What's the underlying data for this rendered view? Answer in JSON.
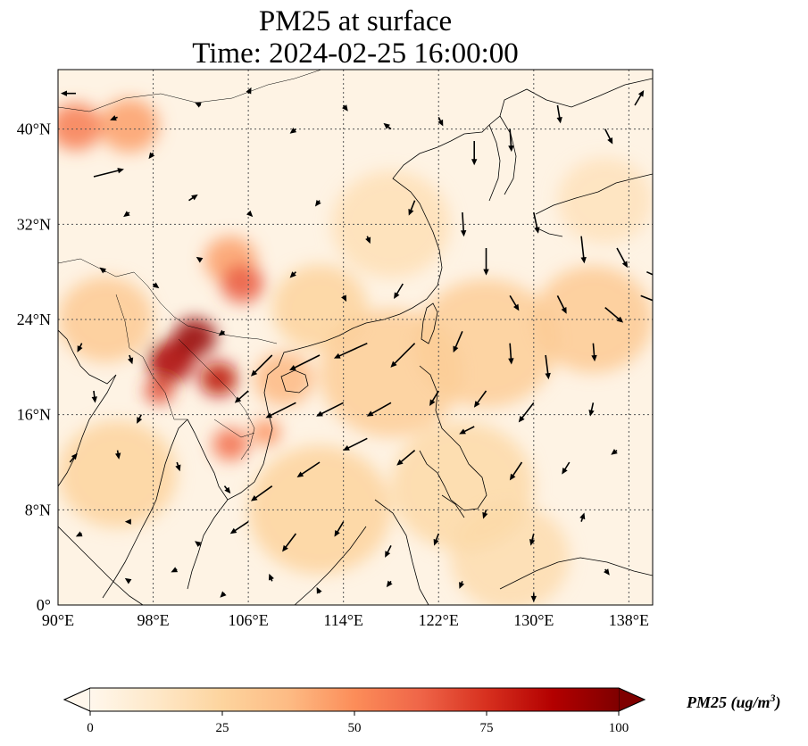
{
  "title": {
    "line1": "PM25 at surface",
    "line2": "Time: 2024-02-25 16:00:00"
  },
  "map": {
    "extent": {
      "lon": [
        90,
        140
      ],
      "lat": [
        0,
        45
      ]
    },
    "grid": true,
    "lon_ticks": [
      {
        "value": 90,
        "label": "90°E"
      },
      {
        "value": 98,
        "label": "98°E"
      },
      {
        "value": 106,
        "label": "106°E"
      },
      {
        "value": 114,
        "label": "114°E"
      },
      {
        "value": 122,
        "label": "122°E"
      },
      {
        "value": 130,
        "label": "130°E"
      },
      {
        "value": 138,
        "label": "138°E"
      }
    ],
    "lat_ticks": [
      {
        "value": 0,
        "label": "0°"
      },
      {
        "value": 8,
        "label": "8°N"
      },
      {
        "value": 16,
        "label": "16°N"
      },
      {
        "value": 24,
        "label": "24°N"
      },
      {
        "value": 32,
        "label": "32°N"
      },
      {
        "value": 40,
        "label": "40°N"
      }
    ],
    "colormap": "OrRd",
    "background_color": "#fef3e4",
    "pm25_hotspots": [
      {
        "lon": 91.5,
        "lat": 40.2,
        "r": 2.2,
        "value": 55
      },
      {
        "lon": 96,
        "lat": 40.3,
        "r": 2.5,
        "value": 45
      },
      {
        "lon": 105.5,
        "lat": 27,
        "r": 1.8,
        "value": 65
      },
      {
        "lon": 104.5,
        "lat": 29,
        "r": 2.2,
        "value": 45
      },
      {
        "lon": 101.5,
        "lat": 22.5,
        "r": 1.8,
        "value": 95
      },
      {
        "lon": 99.5,
        "lat": 20.5,
        "r": 2,
        "value": 90
      },
      {
        "lon": 103.5,
        "lat": 19,
        "r": 1.6,
        "value": 85
      },
      {
        "lon": 98.5,
        "lat": 18,
        "r": 1.2,
        "value": 70
      },
      {
        "lon": 104.5,
        "lat": 13.5,
        "r": 1.5,
        "value": 60
      },
      {
        "lon": 107.5,
        "lat": 14.5,
        "r": 1.2,
        "value": 50
      },
      {
        "lon": 109,
        "lat": 19,
        "r": 2.5,
        "value": 38
      },
      {
        "lon": 94,
        "lat": 24,
        "r": 4,
        "value": 30
      },
      {
        "lon": 112,
        "lat": 25,
        "r": 4,
        "value": 25
      },
      {
        "lon": 118,
        "lat": 19.5,
        "r": 6,
        "value": 28
      },
      {
        "lon": 126,
        "lat": 22,
        "r": 6,
        "value": 28
      },
      {
        "lon": 135,
        "lat": 24,
        "r": 5,
        "value": 30
      },
      {
        "lon": 124,
        "lat": 10,
        "r": 6,
        "value": 22
      },
      {
        "lon": 112,
        "lat": 8,
        "r": 6,
        "value": 25
      },
      {
        "lon": 95,
        "lat": 11,
        "r": 5,
        "value": 25
      },
      {
        "lon": 128,
        "lat": 4,
        "r": 5,
        "value": 20
      },
      {
        "lon": 136,
        "lat": 34,
        "r": 4,
        "value": 16
      },
      {
        "lon": 118,
        "lat": 32,
        "r": 5,
        "value": 18
      }
    ],
    "wind_vectors": [
      {
        "lon": 91.5,
        "lat": 43,
        "u": -1,
        "v": 0
      },
      {
        "lon": 95,
        "lat": 41,
        "u": -0.5,
        "v": -0.2
      },
      {
        "lon": 93,
        "lat": 36,
        "u": 2,
        "v": 0.5
      },
      {
        "lon": 98,
        "lat": 38,
        "u": -0.3,
        "v": -0.4
      },
      {
        "lon": 102,
        "lat": 42,
        "u": -0.4,
        "v": 0.2
      },
      {
        "lon": 106,
        "lat": 43,
        "u": 0.2,
        "v": 0.4
      },
      {
        "lon": 110,
        "lat": 40,
        "u": -0.4,
        "v": -0.3
      },
      {
        "lon": 114,
        "lat": 42,
        "u": 0.3,
        "v": -0.4
      },
      {
        "lon": 118,
        "lat": 40,
        "u": -0.5,
        "v": 0.4
      },
      {
        "lon": 122,
        "lat": 41,
        "u": 0.3,
        "v": -0.6
      },
      {
        "lon": 125,
        "lat": 39,
        "u": 0,
        "v": -1.6
      },
      {
        "lon": 128,
        "lat": 40,
        "u": 0.1,
        "v": -1.5
      },
      {
        "lon": 132,
        "lat": 42,
        "u": 0.2,
        "v": -1.2
      },
      {
        "lon": 136,
        "lat": 40,
        "u": 0.5,
        "v": -1
      },
      {
        "lon": 138.5,
        "lat": 42,
        "u": 0.6,
        "v": 1
      },
      {
        "lon": 96,
        "lat": 33,
        "u": -0.4,
        "v": -0.3
      },
      {
        "lon": 101,
        "lat": 34,
        "u": 0.6,
        "v": 0.4
      },
      {
        "lon": 106,
        "lat": 33,
        "u": 0.3,
        "v": -0.3
      },
      {
        "lon": 112,
        "lat": 34,
        "u": -0.3,
        "v": -0.4
      },
      {
        "lon": 116,
        "lat": 31,
        "u": 0.2,
        "v": -0.5
      },
      {
        "lon": 120,
        "lat": 34,
        "u": -0.4,
        "v": -1
      },
      {
        "lon": 124,
        "lat": 33,
        "u": 0.1,
        "v": -1.6
      },
      {
        "lon": 126,
        "lat": 30,
        "u": 0,
        "v": -1.8
      },
      {
        "lon": 130,
        "lat": 33,
        "u": 0.3,
        "v": -1.4
      },
      {
        "lon": 134,
        "lat": 31,
        "u": 0.2,
        "v": -1.8
      },
      {
        "lon": 137,
        "lat": 30,
        "u": 0.7,
        "v": -1.3
      },
      {
        "lon": 139.5,
        "lat": 28,
        "u": 1.5,
        "v": -0.7
      },
      {
        "lon": 94,
        "lat": 28,
        "u": -0.4,
        "v": 0.3
      },
      {
        "lon": 98,
        "lat": 27,
        "u": 0.4,
        "v": -0.3
      },
      {
        "lon": 102,
        "lat": 29,
        "u": -0.3,
        "v": 0.2
      },
      {
        "lon": 110,
        "lat": 28,
        "u": -0.4,
        "v": -0.4
      },
      {
        "lon": 114,
        "lat": 26,
        "u": 0.2,
        "v": -0.4
      },
      {
        "lon": 119,
        "lat": 27,
        "u": -0.6,
        "v": -1
      },
      {
        "lon": 128,
        "lat": 26,
        "u": 0.6,
        "v": -1
      },
      {
        "lon": 132,
        "lat": 26,
        "u": 0.6,
        "v": -1.2
      },
      {
        "lon": 136,
        "lat": 25,
        "u": 1.2,
        "v": -1
      },
      {
        "lon": 139,
        "lat": 26,
        "u": 1.5,
        "v": -0.6
      },
      {
        "lon": 92,
        "lat": 22,
        "u": -0.3,
        "v": -0.6
      },
      {
        "lon": 96,
        "lat": 21,
        "u": 0.2,
        "v": -0.6
      },
      {
        "lon": 104,
        "lat": 23,
        "u": -0.4,
        "v": -0.3
      },
      {
        "lon": 108,
        "lat": 21,
        "u": -1.4,
        "v": -1.4
      },
      {
        "lon": 112,
        "lat": 21,
        "u": -2,
        "v": -1
      },
      {
        "lon": 116,
        "lat": 22,
        "u": -2.2,
        "v": -1
      },
      {
        "lon": 120,
        "lat": 22,
        "u": -1.6,
        "v": -1.6
      },
      {
        "lon": 124,
        "lat": 23,
        "u": -0.6,
        "v": -1.4
      },
      {
        "lon": 128,
        "lat": 22,
        "u": 0.1,
        "v": -1.4
      },
      {
        "lon": 131,
        "lat": 21,
        "u": 0.2,
        "v": -1.6
      },
      {
        "lon": 135,
        "lat": 22,
        "u": 0.1,
        "v": -1.2
      },
      {
        "lon": 93,
        "lat": 18,
        "u": 0.1,
        "v": -0.8
      },
      {
        "lon": 97,
        "lat": 16,
        "u": -0.3,
        "v": -0.6
      },
      {
        "lon": 106,
        "lat": 18,
        "u": -0.9,
        "v": -0.8
      },
      {
        "lon": 110,
        "lat": 17,
        "u": -2,
        "v": -1
      },
      {
        "lon": 114,
        "lat": 17,
        "u": -1.8,
        "v": -0.9
      },
      {
        "lon": 118,
        "lat": 17,
        "u": -1.6,
        "v": -0.9
      },
      {
        "lon": 122,
        "lat": 18,
        "u": -0.6,
        "v": -1
      },
      {
        "lon": 126,
        "lat": 18,
        "u": -0.8,
        "v": -1.1
      },
      {
        "lon": 130,
        "lat": 17,
        "u": -1,
        "v": -1.3
      },
      {
        "lon": 135,
        "lat": 17,
        "u": -0.2,
        "v": -0.9
      },
      {
        "lon": 91,
        "lat": 12,
        "u": 0.5,
        "v": 0.6
      },
      {
        "lon": 95,
        "lat": 13,
        "u": 0.1,
        "v": -0.6
      },
      {
        "lon": 100,
        "lat": 12,
        "u": 0.2,
        "v": -0.6
      },
      {
        "lon": 104,
        "lat": 10,
        "u": 0.4,
        "v": -0.5
      },
      {
        "lon": 108,
        "lat": 10,
        "u": -1.4,
        "v": -1
      },
      {
        "lon": 112,
        "lat": 12,
        "u": -1.5,
        "v": -1
      },
      {
        "lon": 116,
        "lat": 14,
        "u": -1.6,
        "v": -0.8
      },
      {
        "lon": 120,
        "lat": 13,
        "u": -1.2,
        "v": -1
      },
      {
        "lon": 125,
        "lat": 15,
        "u": -1,
        "v": -0.5
      },
      {
        "lon": 129,
        "lat": 12,
        "u": -0.8,
        "v": -1.2
      },
      {
        "lon": 133,
        "lat": 12,
        "u": -0.5,
        "v": -0.8
      },
      {
        "lon": 137,
        "lat": 13,
        "u": -0.4,
        "v": -0.3
      },
      {
        "lon": 92,
        "lat": 6,
        "u": -0.4,
        "v": -0.2
      },
      {
        "lon": 96,
        "lat": 7,
        "u": -0.3,
        "v": 0
      },
      {
        "lon": 102,
        "lat": 5,
        "u": -0.4,
        "v": 0.3
      },
      {
        "lon": 106,
        "lat": 7,
        "u": -1.2,
        "v": -0.8
      },
      {
        "lon": 110,
        "lat": 6,
        "u": -0.9,
        "v": -1.2
      },
      {
        "lon": 114,
        "lat": 7,
        "u": -0.6,
        "v": -1
      },
      {
        "lon": 118,
        "lat": 5,
        "u": -0.4,
        "v": -0.8
      },
      {
        "lon": 122,
        "lat": 6,
        "u": -0.3,
        "v": -0.8
      },
      {
        "lon": 126,
        "lat": 8,
        "u": -0.2,
        "v": -0.6
      },
      {
        "lon": 130,
        "lat": 6,
        "u": -0.2,
        "v": -0.8
      },
      {
        "lon": 134,
        "lat": 7,
        "u": 0.2,
        "v": 0.6
      },
      {
        "lon": 96,
        "lat": 2,
        "u": -0.3,
        "v": 0.2
      },
      {
        "lon": 100,
        "lat": 3,
        "u": -0.4,
        "v": -0.2
      },
      {
        "lon": 104,
        "lat": 1,
        "u": -0.3,
        "v": -0.3
      },
      {
        "lon": 108,
        "lat": 2,
        "u": -0.2,
        "v": 0.5
      },
      {
        "lon": 112,
        "lat": 1,
        "u": -0.2,
        "v": 0.4
      },
      {
        "lon": 118,
        "lat": 2,
        "u": -0.3,
        "v": -0.4
      },
      {
        "lon": 124,
        "lat": 2,
        "u": -0.2,
        "v": -0.5
      },
      {
        "lon": 130,
        "lat": 1,
        "u": 0,
        "v": -0.6
      },
      {
        "lon": 136,
        "lat": 3,
        "u": 0.3,
        "v": -0.4
      }
    ]
  },
  "colorbar": {
    "min": 0,
    "max": 100,
    "ticks": [
      {
        "value": 0,
        "label": "0"
      },
      {
        "value": 25,
        "label": "25"
      },
      {
        "value": 50,
        "label": "50"
      },
      {
        "value": 75,
        "label": "75"
      },
      {
        "value": 100,
        "label": "100"
      }
    ],
    "label": "PM25 (ug/m",
    "label_sup": "3",
    "label_close": ")",
    "extend": "both"
  }
}
